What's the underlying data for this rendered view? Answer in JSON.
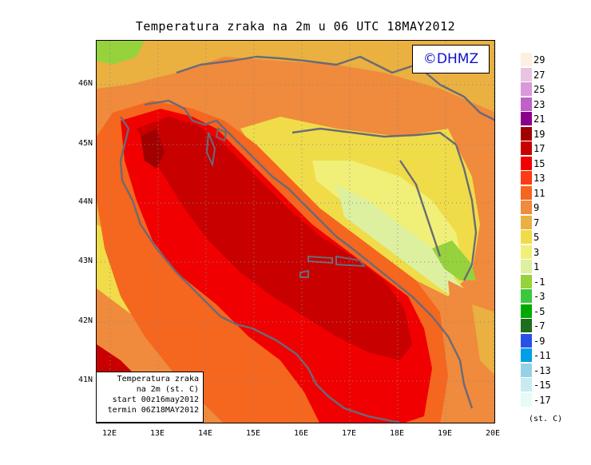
{
  "title": "Temperatura zraka na 2m u 06 UTC 18MAY2012",
  "logo": "©DHMZ",
  "info": {
    "line1": "Temperatura zraka",
    "line2": "na 2m (st. C)",
    "line3": "start 00z16may2012",
    "line4": "termin 06Z18MAY2012"
  },
  "axes": {
    "lat_labels": [
      "46N",
      "45N",
      "44N",
      "43N",
      "42N",
      "41N"
    ],
    "lon_labels": [
      "12E",
      "13E",
      "14E",
      "15E",
      "16E",
      "17E",
      "18E",
      "19E",
      "20E"
    ]
  },
  "colorbar": {
    "unit": "(st. C)",
    "labels": [
      "29",
      "27",
      "25",
      "23",
      "21",
      "19",
      "17",
      "15",
      "13",
      "11",
      "9",
      "7",
      "5",
      "3",
      "1",
      "-1",
      "-3",
      "-5",
      "-7",
      "-9",
      "-11",
      "-13",
      "-15",
      "-17"
    ],
    "colors": [
      "#fdf0e0",
      "#e8c4e0",
      "#d89ad8",
      "#c060c8",
      "#8a008a",
      "#a00000",
      "#c80000",
      "#f00000",
      "#ff3a14",
      "#f5661e",
      "#f08a3c",
      "#eab040",
      "#f0dc48",
      "#f0f078",
      "#dcf0a0",
      "#96d23c",
      "#3cc83c",
      "#00aa00",
      "#1e6e1e",
      "#2850e6",
      "#00a0e6",
      "#96d2e6",
      "#c8ebf0",
      "#e6faf8"
    ]
  }
}
